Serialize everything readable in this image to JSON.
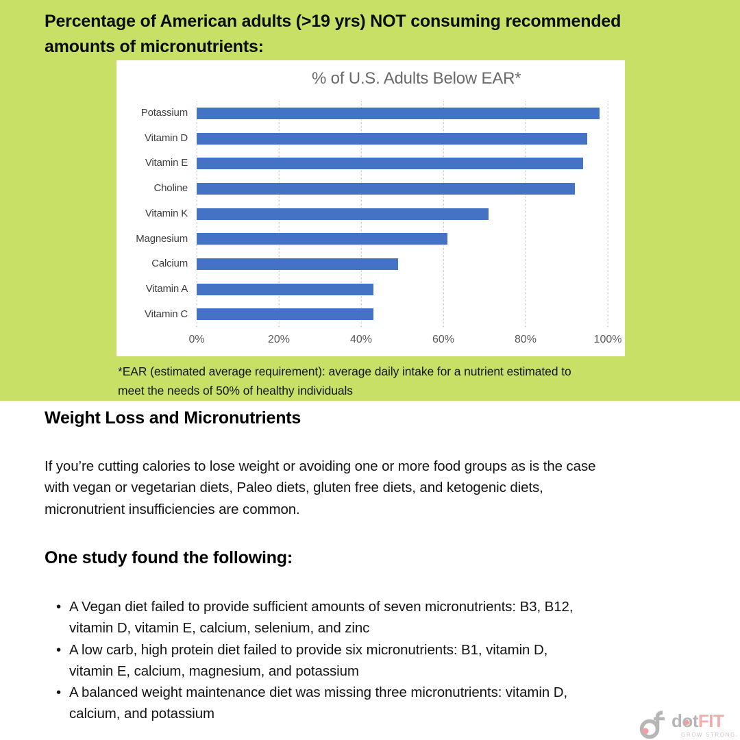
{
  "header": {
    "title_lines": [
      "Percentage of American adults (>19 yrs) NOT consuming recommended",
      "amounts of micronutrients:"
    ]
  },
  "chart": {
    "footnote_lines": [
      "*EAR (estimated average requirement): average daily intake for a nutrient estimated to",
      "meet the needs of 50% of healthy individuals"
    ]
  },
  "chart_data": {
    "type": "bar",
    "orientation": "horizontal",
    "title": "% of U.S. Adults Below EAR*",
    "categories": [
      "Potassium",
      "Vitamin D",
      "Vitamin E",
      "Choline",
      "Vitamin K",
      "Magnesium",
      "Calcium",
      "Vitamin A",
      "Vitamin C"
    ],
    "values": [
      98,
      95,
      94,
      92,
      71,
      61,
      49,
      43,
      43
    ],
    "value_unit": "%",
    "xlim": [
      0,
      100
    ],
    "x_tick_labels": [
      "0%",
      "20%",
      "40%",
      "60%",
      "80%",
      "100%"
    ],
    "x_tick_values": [
      0,
      20,
      40,
      60,
      80,
      100
    ],
    "grid": true,
    "legend": false,
    "bar_color": "#4472c4",
    "title_color": "#6a6a6a",
    "background": "#ffffff"
  },
  "sections": {
    "weight_loss": {
      "heading": "Weight Loss and Micronutrients",
      "paragraph_lines": [
        "If you’re cutting calories to lose weight or avoiding one or more food groups as is the case",
        "with vegan or vegetarian diets, Paleo diets, gluten free diets, and ketogenic diets,",
        "micronutrient insufficiencies are common."
      ]
    },
    "study": {
      "heading": "One study found the following:",
      "bullets": [
        [
          "A Vegan diet failed to provide sufficient amounts of seven micronutrients: B3, B12,",
          "vitamin D, vitamin E, calcium, selenium, and zinc"
        ],
        [
          "A low carb, high protein diet failed to provide six micronutrients: B1, vitamin D,",
          "vitamin E, calcium, magnesium, and potassium"
        ],
        [
          "A balanced weight maintenance diet was missing three micronutrients: vitamin D,",
          "calcium, and potassium"
        ]
      ]
    }
  },
  "logo": {
    "dot": "dot",
    "fit": "FIT",
    "tagline": "GROW STRONG.",
    "gray": "#a4a4a4",
    "pink": "#f0868b"
  },
  "colors": {
    "header_background": "#c8e066",
    "bar_blue": "#4472c4",
    "gridline": "#cfcfcf",
    "text": "#141414"
  }
}
